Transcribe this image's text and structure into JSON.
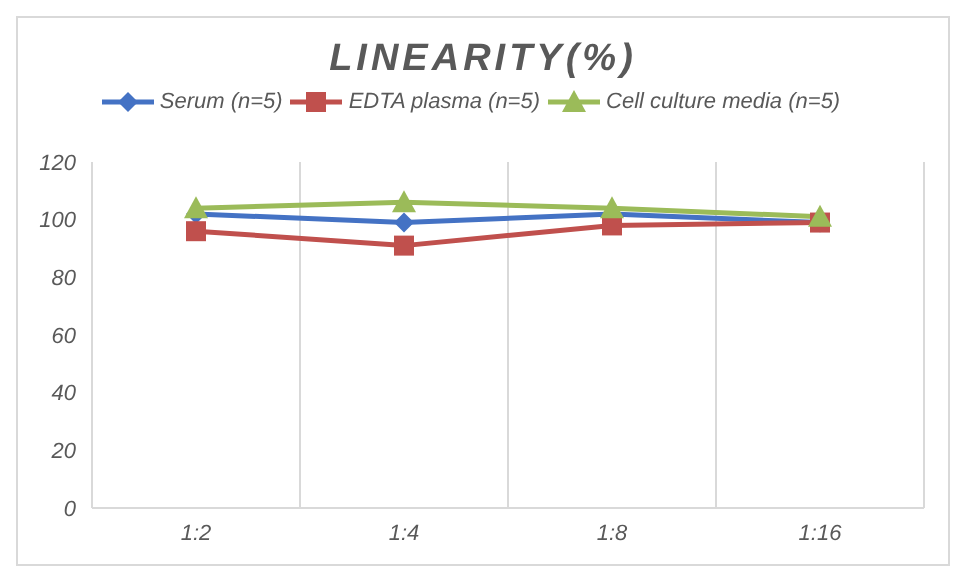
{
  "chart_data": {
    "type": "line",
    "title": "LINEARITY(%)",
    "categories": [
      "1:2",
      "1:4",
      "1:8",
      "1:16"
    ],
    "series": [
      {
        "name": "Serum (n=5)",
        "color": "#4472c4",
        "marker": "diamond",
        "values": [
          102,
          99,
          102,
          99
        ]
      },
      {
        "name": "EDTA plasma (n=5)",
        "color": "#c0504d",
        "marker": "square",
        "values": [
          96,
          91,
          98,
          99
        ]
      },
      {
        "name": "Cell culture media (n=5)",
        "color": "#9bbb59",
        "marker": "triangle",
        "values": [
          104,
          106,
          104,
          101
        ]
      }
    ],
    "ylim": [
      0,
      120
    ],
    "yticks": [
      0,
      20,
      40,
      60,
      80,
      100,
      120
    ],
    "grid": "x",
    "legend": "top"
  }
}
